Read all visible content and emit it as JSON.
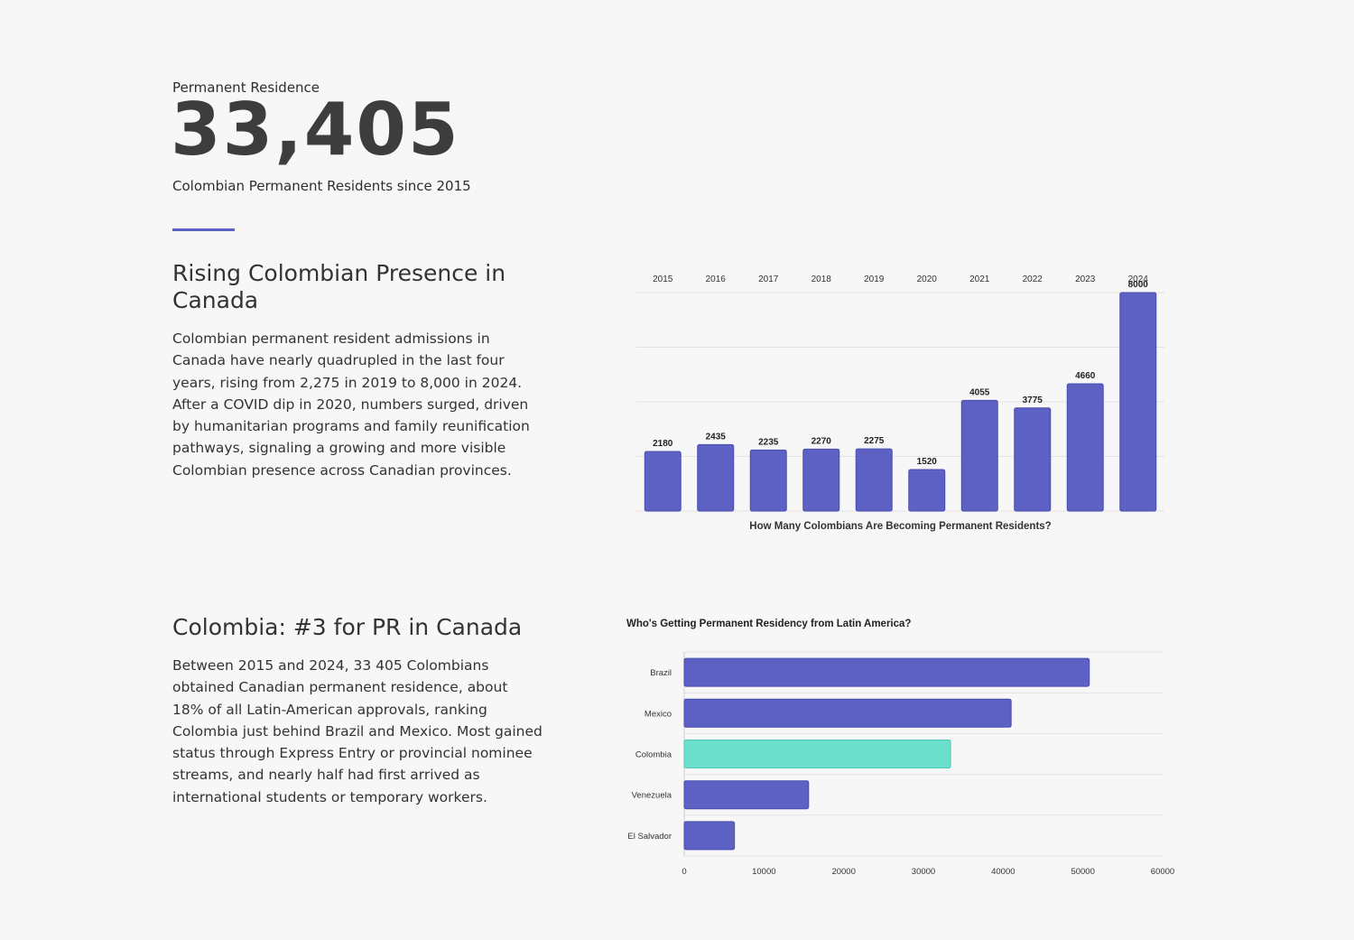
{
  "header": {
    "label": "Permanent Residence",
    "value": "33,405",
    "caption": "Colombian Permanent Residents since 2015"
  },
  "section1": {
    "title": "Rising Colombian Presence in Canada",
    "body": "Colombian permanent resident admissions in Canada have nearly quadrupled in the last four years, rising from 2,275 in 2019 to 8,000 in 2024. After a COVID dip in 2020, numbers surged, driven by humanitarian programs and family reunification pathways, signaling a growing and more visible Colombian presence across Canadian provinces."
  },
  "section2": {
    "title": "Colombia: #3 for PR in Canada",
    "body": "Between 2015 and 2024, 33 405 Colombians obtained Canadian permanent residence, about 18% of all Latin-American approvals, ranking Colombia just behind Brazil and Mexico. Most gained status through Express Entry or provincial nominee streams, and nearly half had first arrived as international students or temporary workers."
  },
  "chart_data": [
    {
      "type": "bar",
      "title": "How Many Colombians Are Becoming Permanent Residents?",
      "categories": [
        "2015",
        "2016",
        "2017",
        "2018",
        "2019",
        "2020",
        "2021",
        "2022",
        "2023",
        "2024"
      ],
      "values": [
        2180,
        2435,
        2235,
        2270,
        2275,
        1520,
        4055,
        3775,
        4660,
        8000
      ],
      "ylim": [
        0,
        8000
      ],
      "grid": true,
      "category_axis": "top",
      "data_labels": true,
      "color": "#5e61c4"
    },
    {
      "type": "bar",
      "orientation": "horizontal",
      "title": "Who's Getting Permanent Residency from Latin America?",
      "categories": [
        "Brazil",
        "Mexico",
        "Colombia",
        "Venezuela",
        "El Salvador"
      ],
      "values": [
        50800,
        41000,
        33405,
        15600,
        6300
      ],
      "xlim": [
        0,
        60000
      ],
      "xticks": [
        0,
        10000,
        20000,
        30000,
        40000,
        50000,
        60000
      ],
      "grid": true,
      "color": "#5e61c4",
      "highlight_category": "Colombia",
      "highlight_color": "#6de0cd"
    }
  ]
}
